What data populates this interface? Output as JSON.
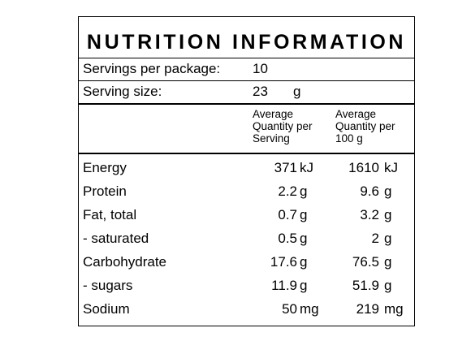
{
  "panel": {
    "title": "NUTRITION INFORMATION",
    "servings_label": "Servings per package:",
    "servings_value": "10",
    "serving_size_label": "Serving size:",
    "serving_size_value": "23",
    "serving_size_unit": "g",
    "col_per_serving": "Average\nQuantity per\nServing",
    "col_per_100g": "Average\nQuantity per\n100 g"
  },
  "nutrients": [
    {
      "name": "Energy",
      "per_serving": "371",
      "unit_serving": "kJ",
      "per_100g": "1610",
      "unit_100g": "kJ"
    },
    {
      "name": "Protein",
      "per_serving": "2.2",
      "unit_serving": "g",
      "per_100g": "9.6",
      "unit_100g": "g"
    },
    {
      "name": "Fat, total",
      "per_serving": "0.7",
      "unit_serving": "g",
      "per_100g": "3.2",
      "unit_100g": "g"
    },
    {
      "name": "- saturated",
      "per_serving": "0.5",
      "unit_serving": "g",
      "per_100g": "2",
      "unit_100g": "g"
    },
    {
      "name": "Carbohydrate",
      "per_serving": "17.6",
      "unit_serving": "g",
      "per_100g": "76.5",
      "unit_100g": "g"
    },
    {
      "name": "- sugars",
      "per_serving": "11.9",
      "unit_serving": "g",
      "per_100g": "51.9",
      "unit_100g": "g"
    },
    {
      "name": "Sodium",
      "per_serving": "50",
      "unit_serving": "mg",
      "per_100g": "219",
      "unit_100g": "mg"
    }
  ]
}
